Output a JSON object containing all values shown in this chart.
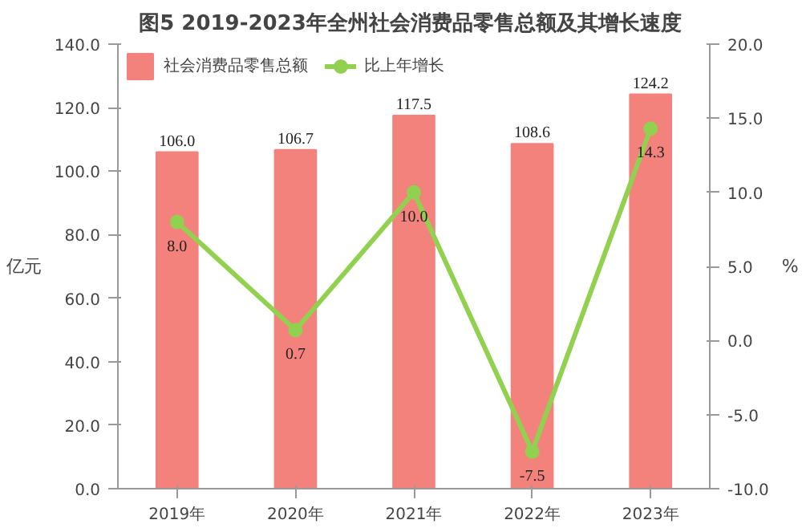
{
  "chart_data": {
    "type": "bar",
    "title": "图5  2019-2023年全州社会消费品零售总额及其增长速度",
    "ylabel": "亿元",
    "y2label": "%",
    "categories": [
      "2019年",
      "2020年",
      "2021年",
      "2022年",
      "2023年"
    ],
    "series": [
      {
        "name": "社会消费品零售总额",
        "color": "#f4827c",
        "values": [
          106.0,
          106.7,
          117.5,
          108.6,
          124.2
        ],
        "value_labels": [
          "106.0",
          "106.7",
          "117.5",
          "108.6",
          "124.2"
        ]
      },
      {
        "name": "比上年增长",
        "type": "line",
        "axis": "y2",
        "color": "#92d050",
        "marker": "circle",
        "values": [
          8.0,
          0.7,
          10.0,
          -7.5,
          14.3
        ],
        "value_labels": [
          "8.0",
          "0.7",
          "10.0",
          "-7.5",
          "14.3"
        ]
      }
    ],
    "ylim": [
      0,
      140
    ],
    "yticks": [
      {
        "value": 0,
        "label": "0.0"
      },
      {
        "value": 20,
        "label": "20.0"
      },
      {
        "value": 40,
        "label": "40.0"
      },
      {
        "value": 60,
        "label": "60.0"
      },
      {
        "value": 80,
        "label": "80.0"
      },
      {
        "value": 100,
        "label": "100.0"
      },
      {
        "value": 120,
        "label": "120.0"
      },
      {
        "value": 140,
        "label": "140.0"
      }
    ],
    "y2lim": [
      -10,
      20
    ],
    "y2ticks": [
      {
        "value": -10,
        "label": "-10.0"
      },
      {
        "value": -5,
        "label": "-5.0"
      },
      {
        "value": 0,
        "label": "0.0"
      },
      {
        "value": 5,
        "label": "5.0"
      },
      {
        "value": 10,
        "label": "10.0"
      },
      {
        "value": 15,
        "label": "15.0"
      },
      {
        "value": 20,
        "label": "20.0"
      }
    ],
    "grid": false,
    "legend": "top left"
  }
}
